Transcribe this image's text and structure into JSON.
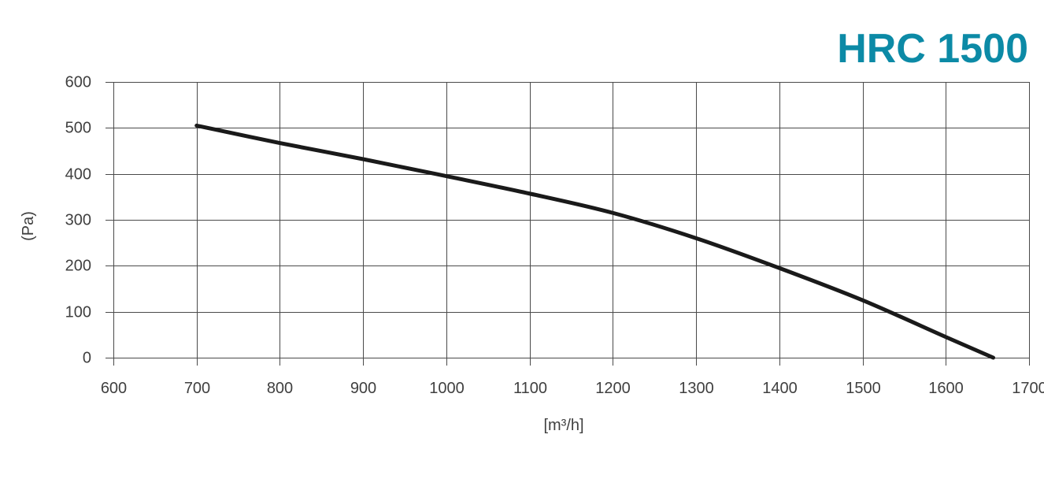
{
  "chart_data": {
    "type": "line",
    "title": "HRC 1500",
    "xlabel": "[m³/h]",
    "ylabel": "(Pa)",
    "xlim": [
      600,
      1700
    ],
    "ylim": [
      0,
      600
    ],
    "x_ticks": [
      600,
      700,
      800,
      900,
      1000,
      1100,
      1200,
      1300,
      1400,
      1500,
      1600,
      1700
    ],
    "y_ticks": [
      0,
      100,
      200,
      300,
      400,
      500,
      600
    ],
    "grid": true,
    "series": [
      {
        "x": [
          700,
          800,
          900,
          1000,
          1100,
          1200,
          1300,
          1400,
          1500,
          1600,
          1657
        ],
        "y": [
          505,
          467,
          432,
          395,
          357,
          315,
          260,
          195,
          125,
          45,
          0
        ]
      }
    ]
  },
  "colors": {
    "title": "#0c8aa6",
    "curve": "#1a1a1a",
    "grid": "#4a4a4a",
    "text": "#404040"
  }
}
